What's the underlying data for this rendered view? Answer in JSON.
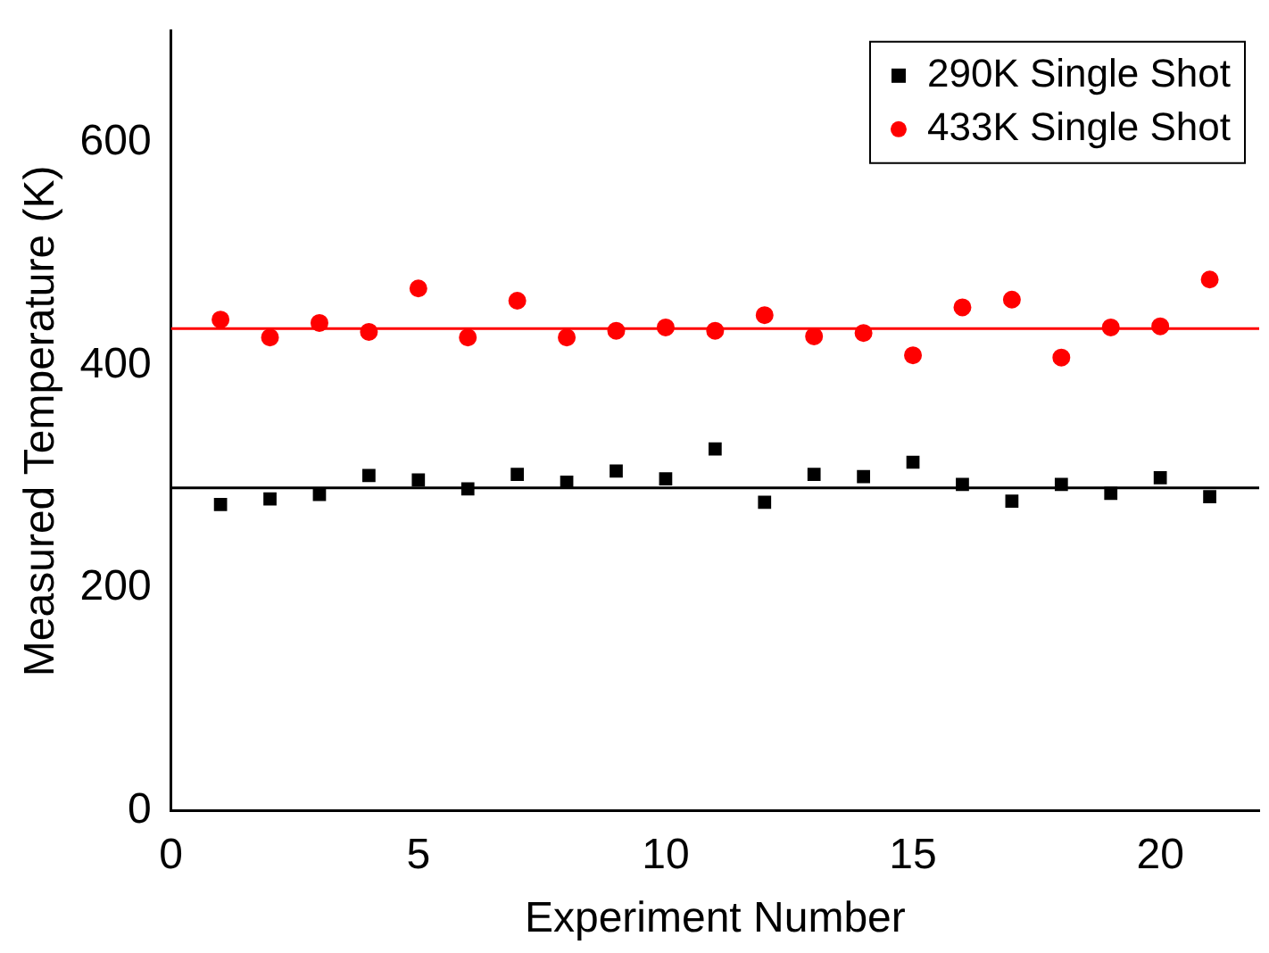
{
  "chart_data": {
    "type": "scatter",
    "xlabel": "Experiment Number",
    "ylabel": "Measured Temperature (K)",
    "x": [
      1,
      2,
      3,
      4,
      5,
      6,
      7,
      8,
      9,
      10,
      11,
      12,
      13,
      14,
      15,
      16,
      17,
      18,
      19,
      20,
      21
    ],
    "series": [
      {
        "name": "290K Single Shot",
        "color": "#000000",
        "marker": "square",
        "values": [
          275,
          280,
          284,
          301,
          297,
          289,
          302,
          295,
          305,
          298,
          325,
          277,
          302,
          300,
          313,
          293,
          278,
          293,
          285,
          299,
          282
        ]
      },
      {
        "name": "433K Single Shot",
        "color": "#ff0000",
        "marker": "circle",
        "values": [
          441,
          425,
          438,
          430,
          469,
          425,
          458,
          425,
          431,
          434,
          431,
          445,
          426,
          429,
          409,
          452,
          459,
          407,
          434,
          435,
          477
        ]
      }
    ],
    "ref_lines": [
      {
        "axis": "y",
        "value": 290,
        "color": "#000000"
      },
      {
        "axis": "y",
        "value": 433,
        "color": "#ff0000"
      }
    ],
    "xlim": [
      0,
      22
    ],
    "xticks": [
      0,
      5,
      10,
      15,
      20
    ],
    "ylim": [
      0,
      700
    ],
    "yticks": [
      0,
      200,
      400,
      600
    ],
    "grid": false,
    "legend": "top right"
  }
}
